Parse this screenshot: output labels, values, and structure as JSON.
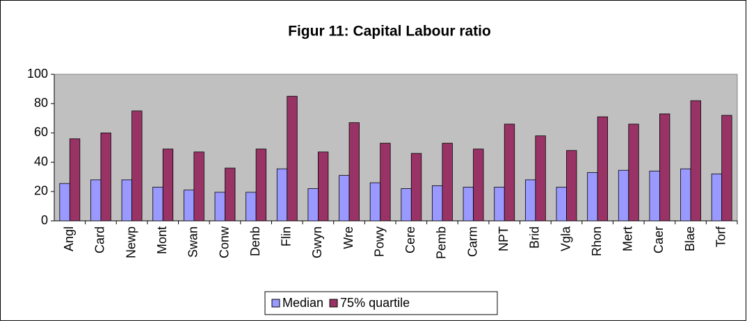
{
  "chart_data": {
    "type": "bar",
    "title": "Figur 11: Capital Labour ratio",
    "categories": [
      "Angl",
      "Card",
      "Newp",
      "Mont",
      "Swan",
      "Conw",
      "Denb",
      "Flin",
      "Gwyn",
      "Wre",
      "Powy",
      "Cere",
      "Pemb",
      "Carm",
      "NPT",
      "Brid",
      "Vgla",
      "Rhon",
      "Mert",
      "Caer",
      "Blae",
      "Torf"
    ],
    "series": [
      {
        "name": "Median",
        "color": "#9999ff",
        "values": [
          25.5,
          28,
          28,
          23,
          21,
          19.5,
          19.5,
          35.5,
          22,
          31,
          26,
          22,
          24,
          23,
          23,
          28,
          23,
          33,
          34.5,
          34,
          35.5,
          32
        ]
      },
      {
        "name": "75% quartile",
        "color": "#993366",
        "values": [
          56,
          60,
          75,
          49,
          47,
          36,
          49,
          85,
          47,
          67,
          53,
          46,
          53,
          49,
          66,
          58,
          48,
          71,
          66,
          73,
          82,
          72
        ]
      }
    ],
    "ylim": [
      0,
      100
    ],
    "yticks": [
      0,
      20,
      40,
      60,
      80,
      100
    ],
    "grid": false,
    "legend": "bottom"
  }
}
